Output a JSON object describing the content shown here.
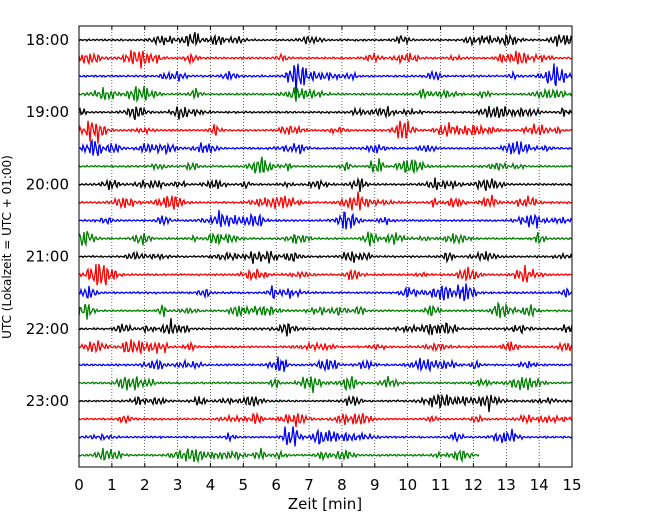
{
  "chart_data": {
    "type": "line",
    "title": "",
    "xlabel": "Zeit  [min]",
    "ylabel": "UTC (Lokalzeit = UTC + 01:00)",
    "xlim": [
      0,
      15
    ],
    "x_ticks": [
      "0",
      "1",
      "2",
      "3",
      "4",
      "5",
      "6",
      "7",
      "8",
      "9",
      "10",
      "11",
      "12",
      "13",
      "14",
      "15"
    ],
    "y_ticks": [
      "18:00",
      "19:00",
      "20:00",
      "21:00",
      "22:00",
      "23:00"
    ],
    "grid": "vertical dotted lines at each minute",
    "traces_start_utc": "18:00",
    "trace_interval_minutes": 15,
    "trace_count": 24,
    "last_trace_end_min": 12.2,
    "color_cycle": [
      "#000000",
      "#ff0000",
      "#0000ff",
      "#008000"
    ]
  }
}
